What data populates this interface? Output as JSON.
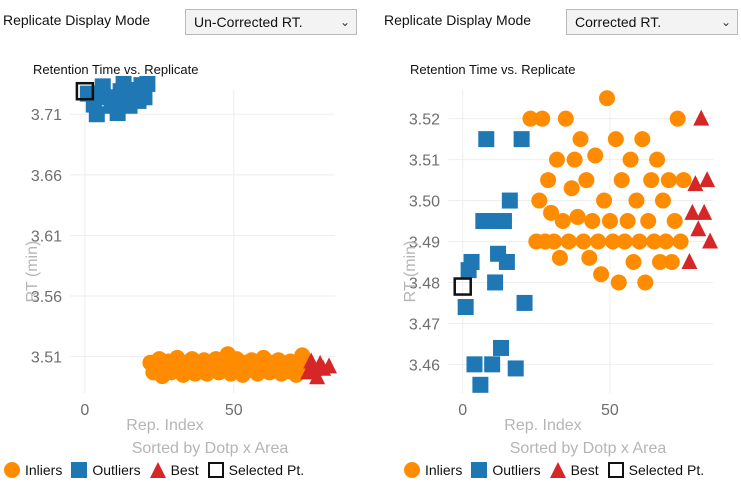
{
  "panels": [
    {
      "mode_label": "Replicate Display Mode",
      "mode_value": "Un-Corrected RT.",
      "chart_title": "Retention Time vs. Replicate",
      "xlabel": "Rep. Index",
      "xlabel2": "Sorted by Dotp x Area",
      "ylabel": "RT (min)",
      "legend": [
        "Inliers",
        "Outliers",
        "Best",
        "Selected Pt."
      ]
    },
    {
      "mode_label": "Replicate Display Mode",
      "mode_value": "Corrected RT.",
      "chart_title": "Retention Time vs. Replicate",
      "xlabel": "Rep. Index",
      "xlabel2": "Sorted by Dotp x Area",
      "ylabel": "RT (min)",
      "legend": [
        "Inliers",
        "Outliers",
        "Best",
        "Selected Pt."
      ]
    }
  ],
  "colors": {
    "inlier": "#ff8c00",
    "outlier": "#1f77b4",
    "best": "#d62728",
    "selected": "#111111",
    "grid": "#eeeeee"
  },
  "chart_data": [
    {
      "type": "scatter",
      "title": "Retention Time vs. Replicate",
      "xlabel": "Rep. Index",
      "ylabel": "RT (min)",
      "xticks": [
        0,
        50
      ],
      "yticks": [
        "3.71",
        "3.66",
        "3.61",
        "3.56",
        "3.51"
      ],
      "ylim": [
        3.48,
        3.73
      ],
      "grid": true,
      "legend": "bottom",
      "series": [
        {
          "name": "Outliers",
          "marker": "square",
          "points": [
            [
              1,
              3.727
            ],
            [
              3,
              3.718
            ],
            [
              4,
              3.71
            ],
            [
              5,
              3.725
            ],
            [
              6,
              3.733
            ],
            [
              8,
              3.724
            ],
            [
              9,
              3.717
            ],
            [
              11,
              3.711
            ],
            [
              12,
              3.729
            ],
            [
              13,
              3.735
            ],
            [
              14,
              3.723
            ],
            [
              15,
              3.717
            ],
            [
              16,
              3.73
            ],
            [
              18,
              3.721
            ],
            [
              19,
              3.734
            ],
            [
              20,
              3.724
            ],
            [
              21,
              3.735
            ]
          ]
        },
        {
          "name": "Inliers",
          "marker": "circle",
          "points": [
            [
              22,
              3.505
            ],
            [
              23,
              3.497
            ],
            [
              24,
              3.502
            ],
            [
              25,
              3.508
            ],
            [
              26,
              3.494
            ],
            [
              27,
              3.5
            ],
            [
              28,
              3.506
            ],
            [
              29,
              3.497
            ],
            [
              30,
              3.503
            ],
            [
              31,
              3.509
            ],
            [
              32,
              3.499
            ],
            [
              33,
              3.495
            ],
            [
              34,
              3.505
            ],
            [
              35,
              3.502
            ],
            [
              36,
              3.508
            ],
            [
              37,
              3.496
            ],
            [
              38,
              3.503
            ],
            [
              39,
              3.499
            ],
            [
              40,
              3.507
            ],
            [
              41,
              3.496
            ],
            [
              42,
              3.504
            ],
            [
              43,
              3.5
            ],
            [
              44,
              3.508
            ],
            [
              45,
              3.497
            ],
            [
              46,
              3.505
            ],
            [
              47,
              3.5
            ],
            [
              48,
              3.512
            ],
            [
              49,
              3.496
            ],
            [
              50,
              3.503
            ],
            [
              51,
              3.508
            ],
            [
              52,
              3.5
            ],
            [
              53,
              3.495
            ],
            [
              54,
              3.505
            ],
            [
              55,
              3.499
            ],
            [
              56,
              3.507
            ],
            [
              57,
              3.502
            ],
            [
              58,
              3.496
            ],
            [
              59,
              3.504
            ],
            [
              60,
              3.509
            ],
            [
              61,
              3.5
            ],
            [
              62,
              3.497
            ],
            [
              63,
              3.505
            ],
            [
              64,
              3.501
            ],
            [
              65,
              3.507
            ],
            [
              66,
              3.496
            ],
            [
              67,
              3.503
            ],
            [
              68,
              3.498
            ],
            [
              69,
              3.506
            ],
            [
              70,
              3.5
            ],
            [
              71,
              3.495
            ],
            [
              72,
              3.503
            ],
            [
              73,
              3.511
            ]
          ]
        },
        {
          "name": "Best",
          "marker": "triangle",
          "points": [
            [
              75,
              3.497
            ],
            [
              76,
              3.506
            ],
            [
              77,
              3.5
            ],
            [
              78,
              3.493
            ],
            [
              79,
              3.504
            ],
            [
              80,
              3.5
            ],
            [
              82,
              3.502
            ]
          ]
        },
        {
          "name": "Selected Pt.",
          "marker": "open-square",
          "points": [
            [
              0,
              3.729
            ]
          ]
        }
      ]
    },
    {
      "type": "scatter",
      "title": "Retention Time vs. Replicate",
      "xlabel": "Rep. Index",
      "ylabel": "RT (min)",
      "xticks": [
        0,
        50
      ],
      "yticks": [
        "3.52",
        "3.51",
        "3.50",
        "3.49",
        "3.48",
        "3.47",
        "3.46"
      ],
      "ylim": [
        3.453,
        3.527
      ],
      "grid": true,
      "legend": "bottom",
      "series": [
        {
          "name": "Outliers",
          "marker": "square",
          "points": [
            [
              1,
              3.474
            ],
            [
              2,
              3.483
            ],
            [
              3,
              3.485
            ],
            [
              4,
              3.46
            ],
            [
              6,
              3.455
            ],
            [
              7,
              3.495
            ],
            [
              8,
              3.515
            ],
            [
              9,
              3.495
            ],
            [
              10,
              3.46
            ],
            [
              11,
              3.48
            ],
            [
              12,
              3.487
            ],
            [
              13,
              3.464
            ],
            [
              14,
              3.495
            ],
            [
              15,
              3.485
            ],
            [
              16,
              3.5
            ],
            [
              18,
              3.459
            ],
            [
              20,
              3.515
            ],
            [
              21,
              3.475
            ]
          ]
        },
        {
          "name": "Inliers",
          "marker": "circle",
          "points": [
            [
              23,
              3.52
            ],
            [
              25,
              3.49
            ],
            [
              26,
              3.5
            ],
            [
              27,
              3.52
            ],
            [
              28,
              3.49
            ],
            [
              29,
              3.505
            ],
            [
              30,
              3.497
            ],
            [
              31,
              3.49
            ],
            [
              32,
              3.51
            ],
            [
              33,
              3.486
            ],
            [
              34,
              3.495
            ],
            [
              35,
              3.52
            ],
            [
              36,
              3.49
            ],
            [
              37,
              3.503
            ],
            [
              38,
              3.51
            ],
            [
              39,
              3.496
            ],
            [
              40,
              3.515
            ],
            [
              41,
              3.49
            ],
            [
              42,
              3.505
            ],
            [
              43,
              3.486
            ],
            [
              44,
              3.495
            ],
            [
              45,
              3.511
            ],
            [
              46,
              3.49
            ],
            [
              47,
              3.482
            ],
            [
              48,
              3.5
            ],
            [
              49,
              3.525
            ],
            [
              50,
              3.495
            ],
            [
              51,
              3.49
            ],
            [
              52,
              3.515
            ],
            [
              53,
              3.48
            ],
            [
              54,
              3.505
            ],
            [
              55,
              3.49
            ],
            [
              56,
              3.495
            ],
            [
              57,
              3.51
            ],
            [
              58,
              3.485
            ],
            [
              59,
              3.5
            ],
            [
              60,
              3.49
            ],
            [
              61,
              3.515
            ],
            [
              62,
              3.48
            ],
            [
              63,
              3.495
            ],
            [
              64,
              3.505
            ],
            [
              65,
              3.49
            ],
            [
              66,
              3.51
            ],
            [
              67,
              3.485
            ],
            [
              68,
              3.5
            ],
            [
              69,
              3.49
            ],
            [
              70,
              3.505
            ],
            [
              71,
              3.485
            ],
            [
              72,
              3.495
            ],
            [
              73,
              3.52
            ],
            [
              74,
              3.49
            ],
            [
              75,
              3.505
            ]
          ]
        },
        {
          "name": "Best",
          "marker": "triangle",
          "points": [
            [
              77,
              3.485
            ],
            [
              78,
              3.497
            ],
            [
              79,
              3.504
            ],
            [
              80,
              3.493
            ],
            [
              81,
              3.52
            ],
            [
              82,
              3.497
            ],
            [
              83,
              3.505
            ],
            [
              84,
              3.49
            ]
          ]
        },
        {
          "name": "Selected Pt.",
          "marker": "open-square",
          "points": [
            [
              0,
              3.479
            ]
          ]
        }
      ]
    }
  ]
}
